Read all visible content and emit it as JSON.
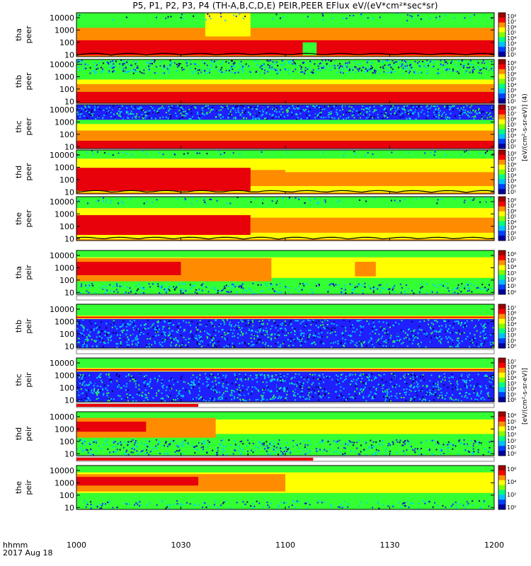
{
  "chart_data": {
    "type": "heatmap",
    "title": "P5, P1, P2, P3, P4 (TH-A,B,C,D,E) PEIR,PEER EFlux eV/(eV*cm²*sec*sr)",
    "xtick_labels": [
      "1000",
      "1030",
      "1100",
      "1130",
      "1200"
    ],
    "xlim": [
      "10:00",
      "12:00"
    ],
    "xlabel_prefix": "hhmm",
    "date_label": "2017 Aug 18",
    "y_scale": "log",
    "ylim": [
      7,
      25000
    ],
    "ytick_labels": [
      "10000",
      "1000",
      "100",
      "10"
    ],
    "ytick_values": [
      10000,
      1000,
      100,
      10
    ],
    "colorbar_unit": "[eV/(cm²-s-sr-eV)]",
    "colorbar_unit_peer": "[eV/(cm²-s-sr-eV)] (4)",
    "colors": {
      "red": "#e8000b",
      "orange": "#ff8c00",
      "yellow": "#ffff00",
      "green": "#33ff33",
      "cyan": "#00d0ff",
      "blue": "#2020ff",
      "dark_blue": "#000060",
      "black": "#000000"
    },
    "panels": [
      {
        "probe": "tha",
        "species": "peer",
        "colorbar_ticks": [
          "10⁸",
          "10⁷",
          "10⁶",
          "10⁵",
          "10⁴",
          "10³",
          "10²",
          "10¹"
        ],
        "colorbar_range_exp": [
          1,
          8
        ],
        "background": "orange",
        "bands": [
          {
            "from_time": 0,
            "to_time": 120,
            "lo": 9,
            "hi": 150,
            "color": "red"
          },
          {
            "from_time": 0,
            "to_time": 120,
            "lo": 150,
            "hi": 1500,
            "color": "orange"
          },
          {
            "from_time": 0,
            "to_time": 120,
            "lo": 1500,
            "hi": 25000,
            "color": "green"
          },
          {
            "from_time": 37,
            "to_time": 50,
            "lo": 300,
            "hi": 25000,
            "color": "yellow"
          },
          {
            "from_time": 65,
            "to_time": 69,
            "lo": 9,
            "hi": 100,
            "color": "green"
          }
        ],
        "speckle": {
          "color": "cyan",
          "lo": 5000,
          "hi": 25000,
          "density": 0.06
        },
        "has_bottom_line": true
      },
      {
        "probe": "thb",
        "species": "peer",
        "colorbar_ticks": [
          "10⁸",
          "10⁷",
          "10⁶",
          "10⁵",
          "10⁴",
          "10³",
          "10²",
          "10¹"
        ],
        "colorbar_range_exp": [
          1,
          8
        ],
        "background": "green",
        "bands": [
          {
            "from_time": 0,
            "to_time": 120,
            "lo": 7,
            "hi": 60,
            "color": "red"
          },
          {
            "from_time": 0,
            "to_time": 120,
            "lo": 60,
            "hi": 250,
            "color": "orange"
          },
          {
            "from_time": 0,
            "to_time": 120,
            "lo": 250,
            "hi": 600,
            "color": "yellow"
          },
          {
            "from_time": 0,
            "to_time": 120,
            "lo": 600,
            "hi": 1500,
            "color": "green"
          }
        ],
        "speckle": {
          "color": "cyan",
          "lo": 1500,
          "hi": 25000,
          "density": 0.35
        },
        "has_bottom_line": false
      },
      {
        "probe": "thc",
        "species": "peer",
        "colorbar_ticks": [
          "10⁸",
          "10⁷",
          "10⁶",
          "10⁵",
          "10⁴",
          "10³",
          "10²",
          "10¹"
        ],
        "colorbar_range_exp": [
          1,
          8
        ],
        "background": "blue",
        "bands": [
          {
            "from_time": 0,
            "to_time": 120,
            "lo": 7,
            "hi": 30,
            "color": "red"
          },
          {
            "from_time": 0,
            "to_time": 120,
            "lo": 30,
            "hi": 200,
            "color": "orange"
          },
          {
            "from_time": 0,
            "to_time": 120,
            "lo": 200,
            "hi": 700,
            "color": "yellow"
          },
          {
            "from_time": 0,
            "to_time": 120,
            "lo": 700,
            "hi": 1500,
            "color": "green"
          }
        ],
        "speckle": {
          "color": "cyan",
          "lo": 1500,
          "hi": 25000,
          "density": 0.45
        },
        "has_bottom_line": false
      },
      {
        "probe": "thd",
        "species": "peer",
        "colorbar_ticks": [
          "10⁸",
          "10⁷",
          "10⁶",
          "10⁵",
          "10⁴",
          "10³",
          "10²",
          "10¹"
        ],
        "colorbar_range_exp": [
          1,
          8
        ],
        "background": "orange",
        "bands": [
          {
            "from_time": 0,
            "to_time": 120,
            "lo": 9,
            "hi": 25000,
            "color": "yellow"
          },
          {
            "from_time": 0,
            "to_time": 120,
            "lo": 30,
            "hi": 600,
            "color": "orange"
          },
          {
            "from_time": 0,
            "to_time": 50,
            "lo": 12,
            "hi": 900,
            "color": "red"
          },
          {
            "from_time": 0,
            "to_time": 120,
            "lo": 5000,
            "hi": 25000,
            "color": "green"
          },
          {
            "from_time": 60,
            "to_time": 120,
            "lo": 400,
            "hi": 2500,
            "color": "yellow"
          }
        ],
        "speckle": {
          "color": "cyan",
          "lo": 8000,
          "hi": 25000,
          "density": 0.08
        },
        "has_bottom_line": true
      },
      {
        "probe": "the",
        "species": "peer",
        "colorbar_ticks": [
          "10⁸",
          "10⁷",
          "10⁶",
          "10⁵",
          "10⁴",
          "10³",
          "10²",
          "10¹"
        ],
        "colorbar_range_exp": [
          1,
          8
        ],
        "background": "orange",
        "bands": [
          {
            "from_time": 0,
            "to_time": 120,
            "lo": 9,
            "hi": 25000,
            "color": "yellow"
          },
          {
            "from_time": 0,
            "to_time": 50,
            "lo": 20,
            "hi": 800,
            "color": "red"
          },
          {
            "from_time": 50,
            "to_time": 120,
            "lo": 30,
            "hi": 500,
            "color": "orange"
          },
          {
            "from_time": 0,
            "to_time": 120,
            "lo": 3000,
            "hi": 25000,
            "color": "green"
          }
        ],
        "speckle": {
          "color": "cyan",
          "lo": 6000,
          "hi": 25000,
          "density": 0.1
        },
        "has_bottom_line": true
      },
      {
        "probe": "tha",
        "species": "peir",
        "colorbar_ticks": [
          "10⁶",
          "10⁵",
          "10⁴",
          "10³",
          "10²",
          "10¹",
          "10⁰"
        ],
        "colorbar_range_exp": [
          0,
          6
        ],
        "background": "green",
        "bands": [
          {
            "from_time": 0,
            "to_time": 120,
            "lo": 150,
            "hi": 7000,
            "color": "yellow"
          },
          {
            "from_time": 0,
            "to_time": 56,
            "lo": 80,
            "hi": 6000,
            "color": "orange"
          },
          {
            "from_time": 0,
            "to_time": 30,
            "lo": 250,
            "hi": 3000,
            "color": "red"
          },
          {
            "from_time": 80,
            "to_time": 86,
            "lo": 200,
            "hi": 3000,
            "color": "orange"
          }
        ],
        "speckle": {
          "color": "cyan",
          "lo": 7,
          "hi": 60,
          "density": 0.25
        },
        "white_strip": true,
        "has_bottom_line": false
      },
      {
        "probe": "thb",
        "species": "peir",
        "colorbar_ticks": [
          "10⁷",
          "10⁶",
          "10⁵",
          "10⁴",
          "10³",
          "10²",
          "10¹",
          "10⁰"
        ],
        "colorbar_range_exp": [
          0,
          7
        ],
        "background": "blue",
        "bands": [
          {
            "from_time": 0,
            "to_time": 120,
            "lo": 3000,
            "hi": 25000,
            "color": "green"
          },
          {
            "from_time": 0,
            "to_time": 120,
            "lo": 1600,
            "hi": 3000,
            "color": "yellow"
          },
          {
            "from_time": 0,
            "to_time": 120,
            "lo": 1900,
            "hi": 2500,
            "color": "red"
          }
        ],
        "speckle": {
          "color": "cyan",
          "lo": 7,
          "hi": 1500,
          "density": 0.35
        },
        "white_strip": true,
        "has_bottom_line": false
      },
      {
        "probe": "thc",
        "species": "peir",
        "colorbar_ticks": [
          "10⁷",
          "10⁶",
          "10⁵",
          "10⁴",
          "10³",
          "10²",
          "10¹",
          "10⁰"
        ],
        "colorbar_range_exp": [
          0,
          7
        ],
        "background": "blue",
        "bands": [
          {
            "from_time": 0,
            "to_time": 120,
            "lo": 4000,
            "hi": 25000,
            "color": "green"
          },
          {
            "from_time": 0,
            "to_time": 120,
            "lo": 2000,
            "hi": 4000,
            "color": "yellow"
          },
          {
            "from_time": 0,
            "to_time": 120,
            "lo": 2400,
            "hi": 3200,
            "color": "red"
          }
        ],
        "speckle": {
          "color": "cyan",
          "lo": 7,
          "hi": 1500,
          "density": 0.35
        },
        "white_strip": true,
        "red_bar_to_time": 35,
        "has_bottom_line": false
      },
      {
        "probe": "thd",
        "species": "peir",
        "colorbar_ticks": [
          "10⁶",
          "10⁵",
          "10⁴",
          "10³",
          "10²",
          "10¹",
          "10⁰"
        ],
        "colorbar_range_exp": [
          0,
          6
        ],
        "background": "green",
        "bands": [
          {
            "from_time": 0,
            "to_time": 120,
            "lo": 400,
            "hi": 6000,
            "color": "yellow"
          },
          {
            "from_time": 0,
            "to_time": 40,
            "lo": 200,
            "hi": 8000,
            "color": "orange"
          },
          {
            "from_time": 0,
            "to_time": 20,
            "lo": 600,
            "hi": 4000,
            "color": "red"
          }
        ],
        "speckle": {
          "color": "cyan",
          "lo": 7,
          "hi": 150,
          "density": 0.25
        },
        "white_strip": true,
        "red_bar_to_time": 68,
        "has_bottom_line": false
      },
      {
        "probe": "the",
        "species": "peir",
        "colorbar_ticks": [
          "10⁶",
          "10⁴",
          "10²",
          "10⁰"
        ],
        "colorbar_range_exp": [
          0,
          6
        ],
        "background": "green",
        "bands": [
          {
            "from_time": 0,
            "to_time": 120,
            "lo": 150,
            "hi": 7000,
            "color": "yellow"
          },
          {
            "from_time": 0,
            "to_time": 60,
            "lo": 200,
            "hi": 5000,
            "color": "orange"
          },
          {
            "from_time": 0,
            "to_time": 35,
            "lo": 600,
            "hi": 3000,
            "color": "red"
          }
        ],
        "speckle": {
          "color": "cyan",
          "lo": 7,
          "hi": 40,
          "density": 0.15
        },
        "white_strip": false,
        "has_bottom_line": false
      }
    ]
  }
}
